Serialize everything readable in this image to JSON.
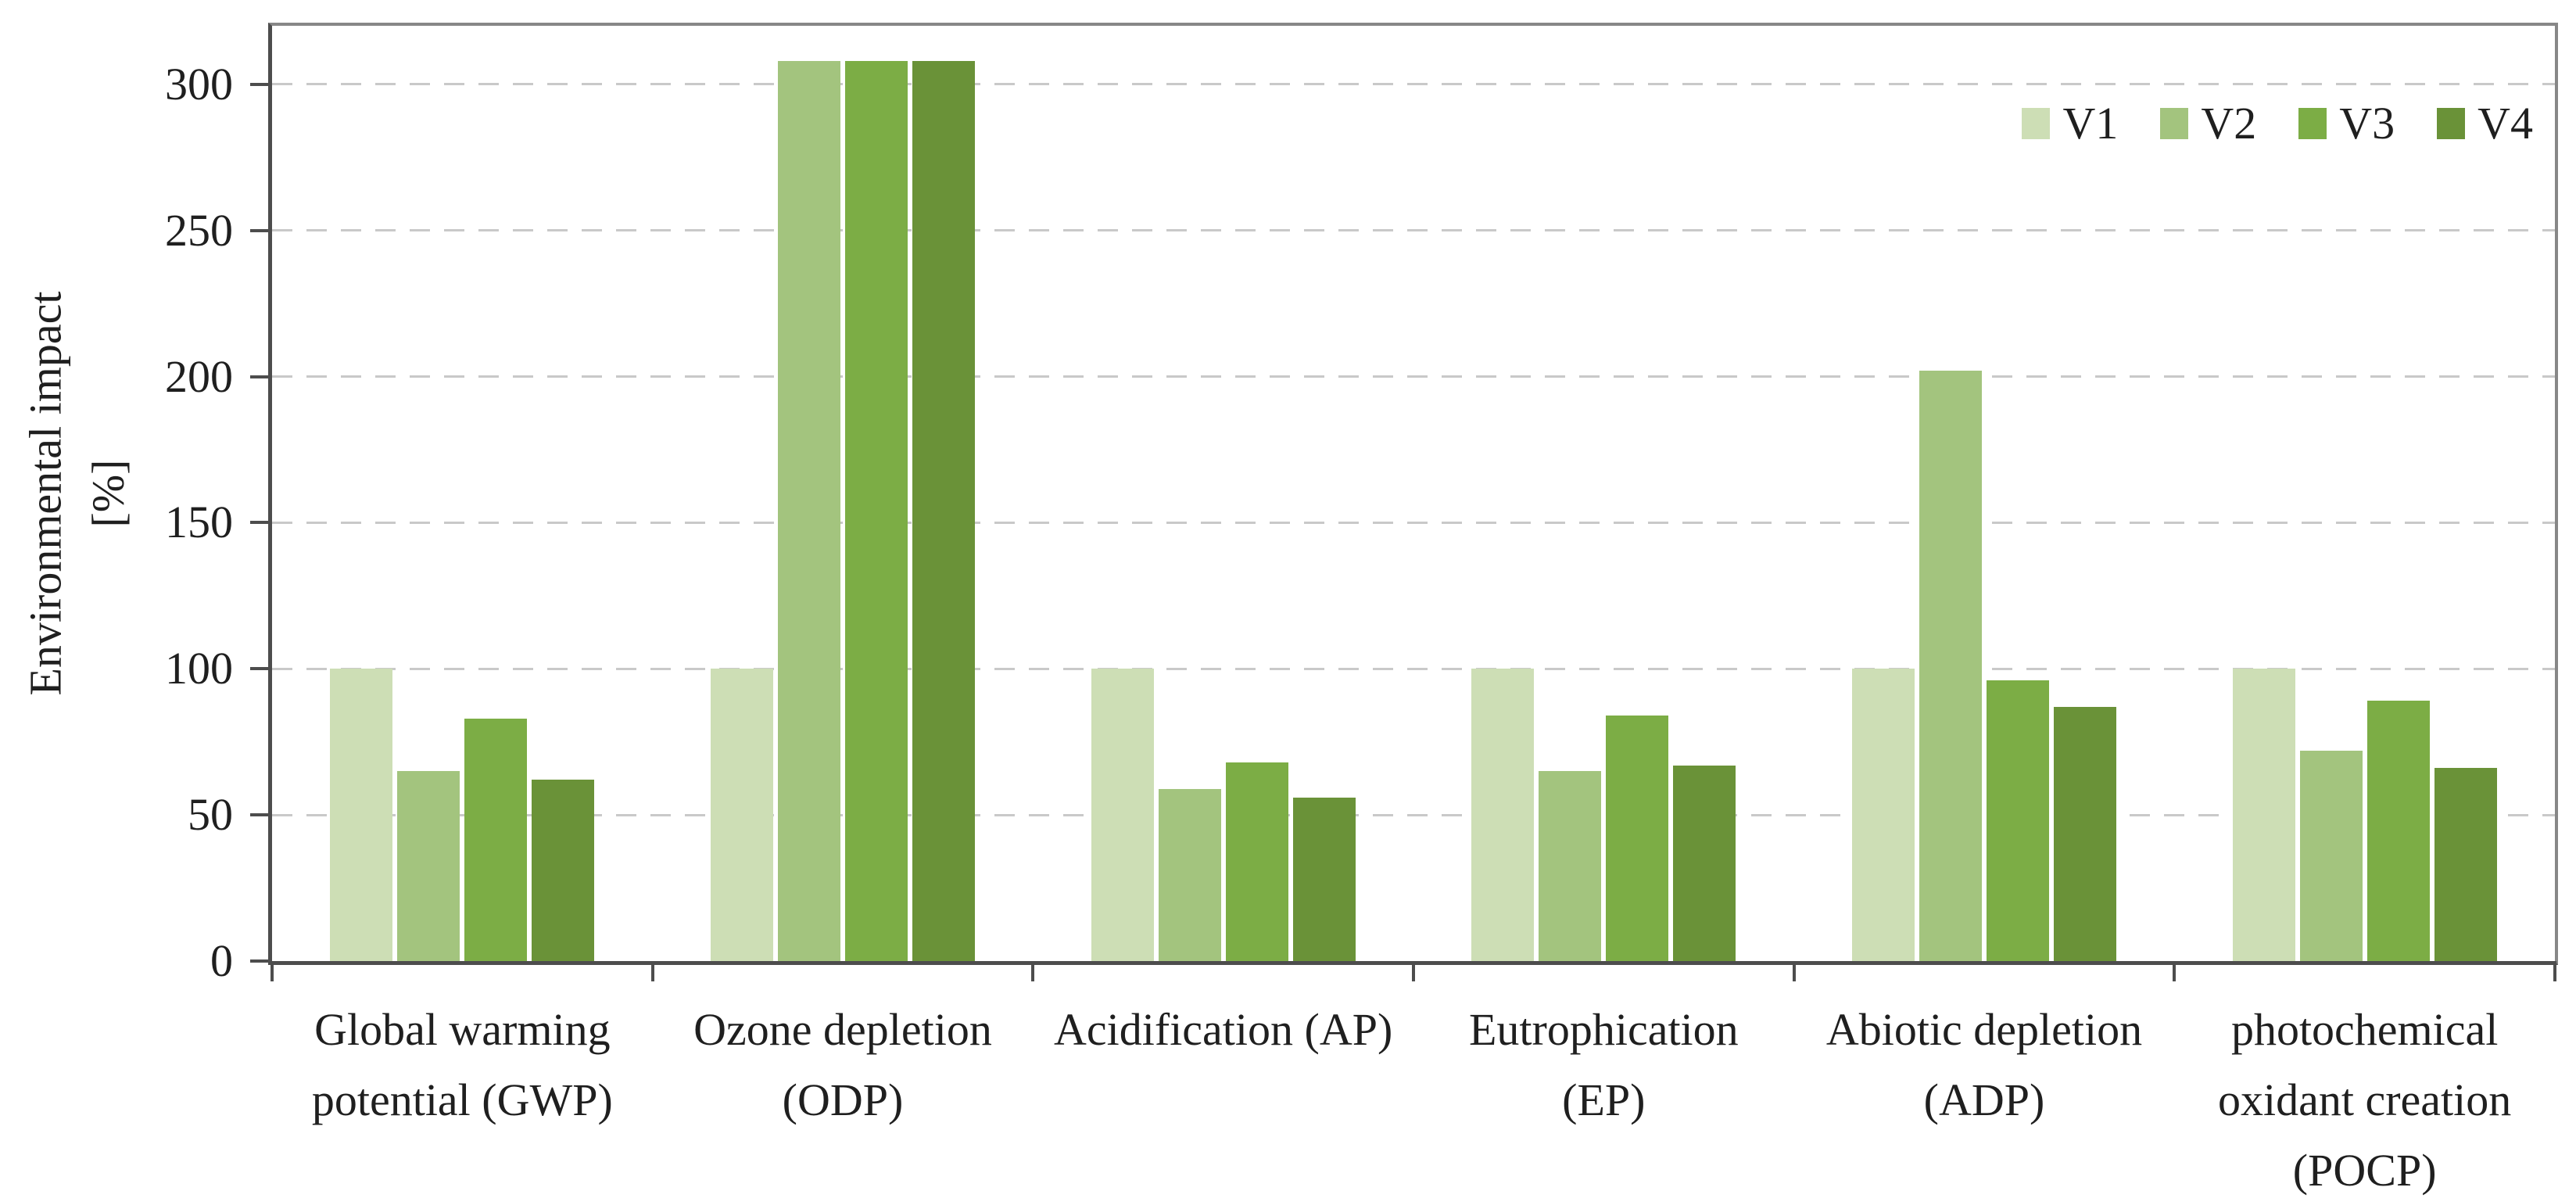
{
  "chart_data": {
    "type": "bar",
    "title": "",
    "ylabel": "Environmental impact",
    "ylabel_unit": "[%]",
    "categories": [
      "Global warming potential (GWP)",
      "Ozone depletion (ODP)",
      "Acidification (AP)",
      "Eutrophication (EP)",
      "Abiotic depletion (ADP)",
      "photochemical oxidant creation (POCP)"
    ],
    "category_lines": [
      [
        "Global warming",
        "potential (GWP)"
      ],
      [
        "Ozone depletion",
        "(ODP)"
      ],
      [
        "Acidification (AP)"
      ],
      [
        "Eutrophication",
        "(EP)"
      ],
      [
        "Abiotic depletion",
        "(ADP)"
      ],
      [
        "photochemical",
        "oxidant creation",
        "(POCP)"
      ]
    ],
    "series": [
      {
        "name": "V1",
        "color": "#cddeb5",
        "values": [
          100,
          100,
          100,
          100,
          100,
          100
        ]
      },
      {
        "name": "V2",
        "color": "#a3c47e",
        "values": [
          65,
          308,
          59,
          65,
          202,
          72
        ]
      },
      {
        "name": "V3",
        "color": "#7cad45",
        "values": [
          83,
          308,
          68,
          84,
          96,
          89
        ]
      },
      {
        "name": "V4",
        "color": "#6a9238",
        "values": [
          62,
          308,
          56,
          67,
          87,
          66
        ]
      }
    ],
    "yticks": [
      0,
      50,
      100,
      150,
      200,
      250,
      300
    ],
    "ylim": [
      0,
      320
    ],
    "grid": {
      "horizontal": true,
      "style": "dashed",
      "color": "#c9c9c9"
    },
    "legend_position": "top-right-inside",
    "colors": {
      "axis": "#4d4d4d",
      "plot_border": "#878787",
      "text": "#1f1f1f",
      "background": "#ffffff"
    }
  }
}
